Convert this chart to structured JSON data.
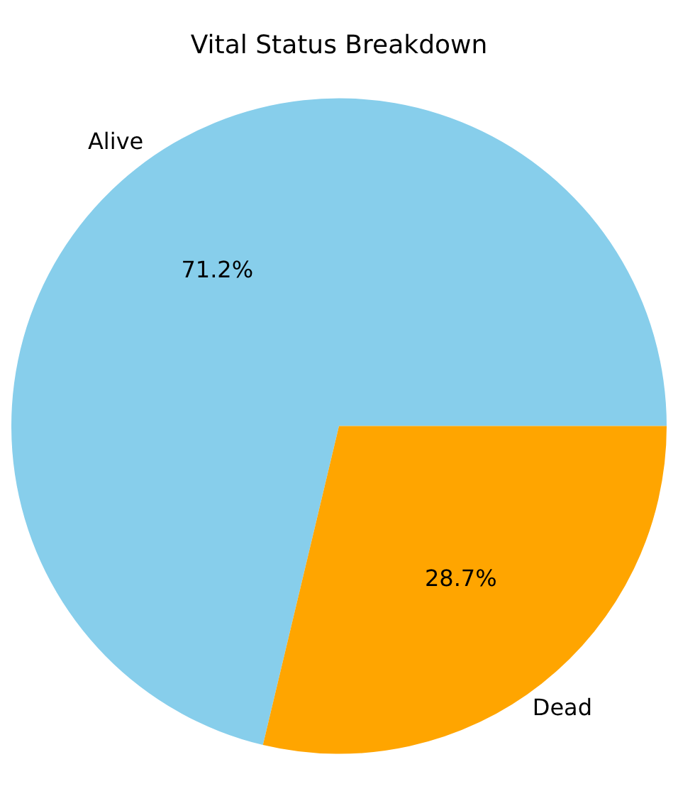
{
  "chart_data": {
    "type": "pie",
    "title": "Vital Status Breakdown",
    "categories": [
      "Alive",
      "Dead"
    ],
    "values": [
      71.2,
      28.7
    ],
    "colors": [
      "#87ceeb",
      "#ffa500"
    ],
    "value_labels": [
      "71.2%",
      "28.7%"
    ]
  }
}
